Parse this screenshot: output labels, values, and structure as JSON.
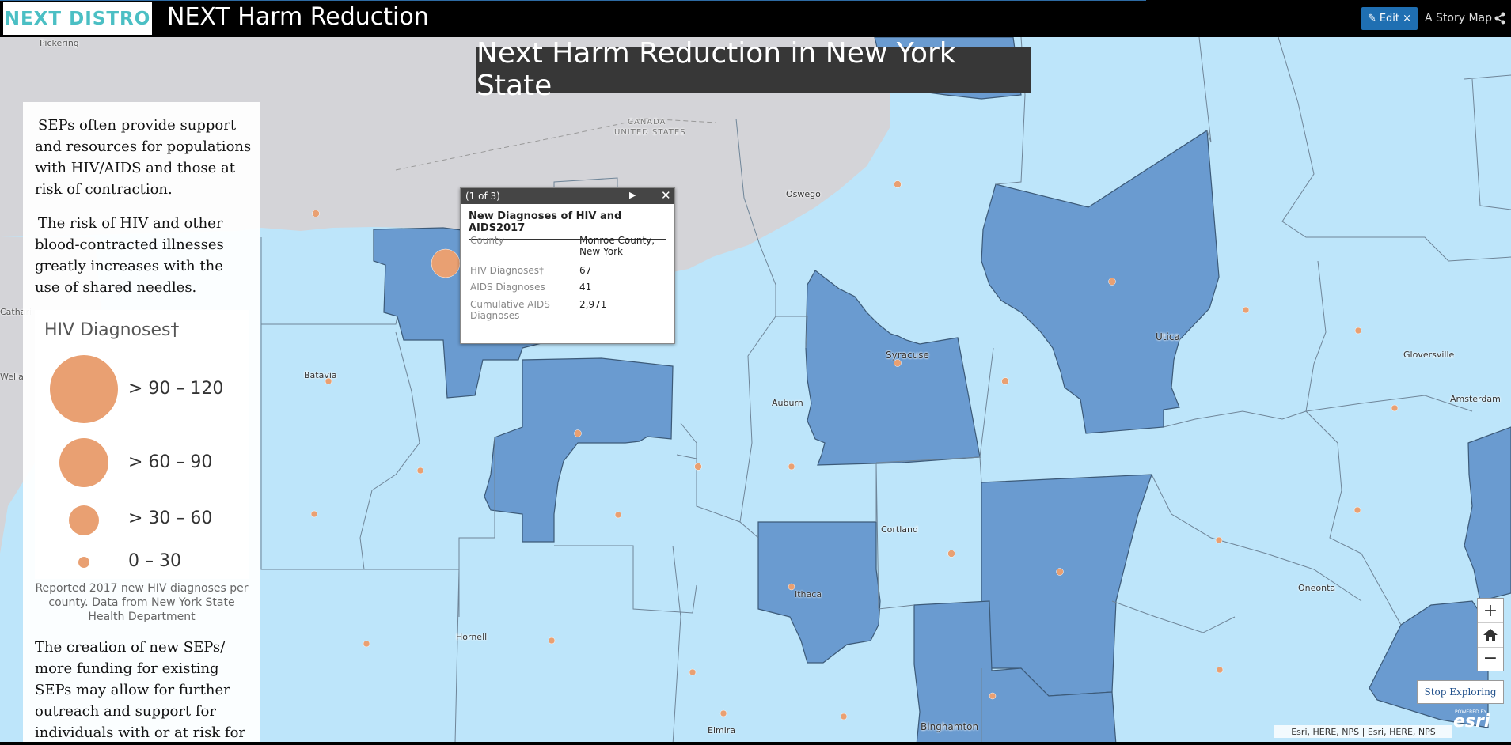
{
  "header": {
    "logo_text": "NEXT DISTRO",
    "app_title": "NEXT Harm Reduction",
    "edit_label": "Edit ×",
    "story_link": "A Story Map"
  },
  "map": {
    "title": "Next Harm Reduction in New York State",
    "border_label_top": "CANADA",
    "border_label_bottom": "UNITED STATES",
    "places": {
      "pickering": "Pickering",
      "oswego": "Oswego",
      "batavia": "Batavia",
      "auburn": "Auburn",
      "syracuse": "Syracuse",
      "utica": "Utica",
      "gloversville": "Gloversville",
      "amsterdam": "Amsterdam",
      "cortland": "Cortland",
      "ithaca": "Ithaca",
      "oneonta": "Oneonta",
      "hornell": "Hornell",
      "elmira": "Elmira",
      "binghamton": "Binghamton",
      "catharines": "Cathari",
      "welland": "Wella"
    },
    "colors": {
      "county_light": "#bde5fa",
      "county_dark": "#6a9bd0",
      "county_border": "#5a6f82",
      "lake": "#d4d4d8",
      "marker": "#e9a072"
    }
  },
  "side_panel": {
    "paragraph1": "SEPs often provide support and resources for populations with HIV/AIDS and those at risk of contraction.",
    "paragraph2": "The risk of HIV and other blood-contracted illnesses greatly increases with the use of shared needles.",
    "paragraph3": "The creation of new SEPs/ more funding for existing SEPs may allow for further outreach and support for individuals with or at risk for",
    "legend": {
      "title": "HIV Diagnoses†",
      "classes": [
        "> 90 – 120",
        "> 60 – 90",
        "> 30 – 60",
        "0 – 30"
      ],
      "caption": "Reported 2017 new HIV diagnoses per county. Data from New York State Health Department"
    }
  },
  "popup": {
    "count": "(1 of 3)",
    "title": "New Diagnoses of HIV and AIDS2017",
    "fields": [
      {
        "label": "County",
        "value": "Monroe County, New York"
      },
      {
        "label": "HIV Diagnoses†",
        "value": "67"
      },
      {
        "label": "AIDS Diagnoses",
        "value": "41"
      },
      {
        "label": "Cumulative AIDS Diagnoses",
        "value": "2,971"
      }
    ]
  },
  "controls": {
    "zoom_in": "+",
    "zoom_out": "−",
    "stop_exploring": "Stop Exploring",
    "attribution": "Esri, HERE, NPS | Esri, HERE, NPS",
    "esri_powered": "POWERED BY",
    "esri_logo": "esri"
  }
}
